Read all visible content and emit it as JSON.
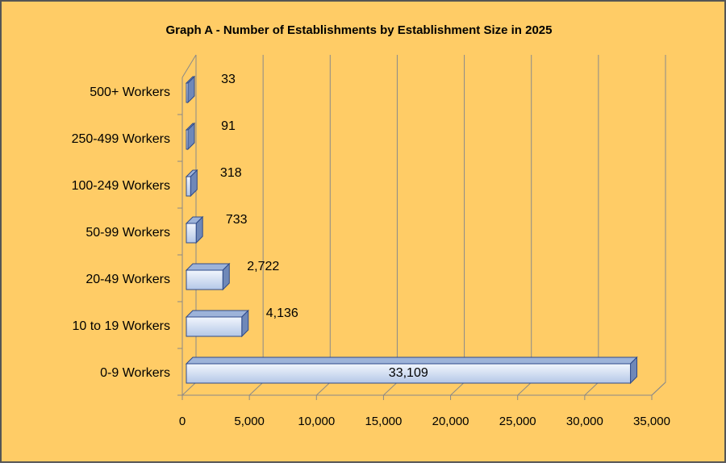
{
  "chart_data": {
    "type": "bar",
    "orientation": "horizontal",
    "title": "Graph A - Number of Establishments by Establishment Size in 2025",
    "categories": [
      "500+ Workers",
      "250-499 Workers",
      "100-249 Workers",
      "50-99 Workers",
      "20-49 Workers",
      "10 to 19 Workers",
      "0-9 Workers"
    ],
    "values": [
      33,
      91,
      318,
      733,
      2722,
      4136,
      33109
    ],
    "value_labels": [
      "33",
      "91",
      "318",
      "733",
      "2,722",
      "4,136",
      "33,109"
    ],
    "color": "#c6d5ee",
    "xlim": [
      0,
      35000
    ],
    "xticks": [
      0,
      {
        "value": 5000,
        "label": "5,000"
      },
      {
        "value": 10000,
        "label": "10,000"
      },
      {
        "value": 15000,
        "label": "15,000"
      },
      {
        "value": 20000,
        "label": "20,000"
      },
      {
        "value": 25000,
        "label": "25,000"
      },
      {
        "value": 30000,
        "label": "30,000"
      },
      {
        "value": 35000,
        "label": "35,000"
      }
    ],
    "grid": true
  }
}
